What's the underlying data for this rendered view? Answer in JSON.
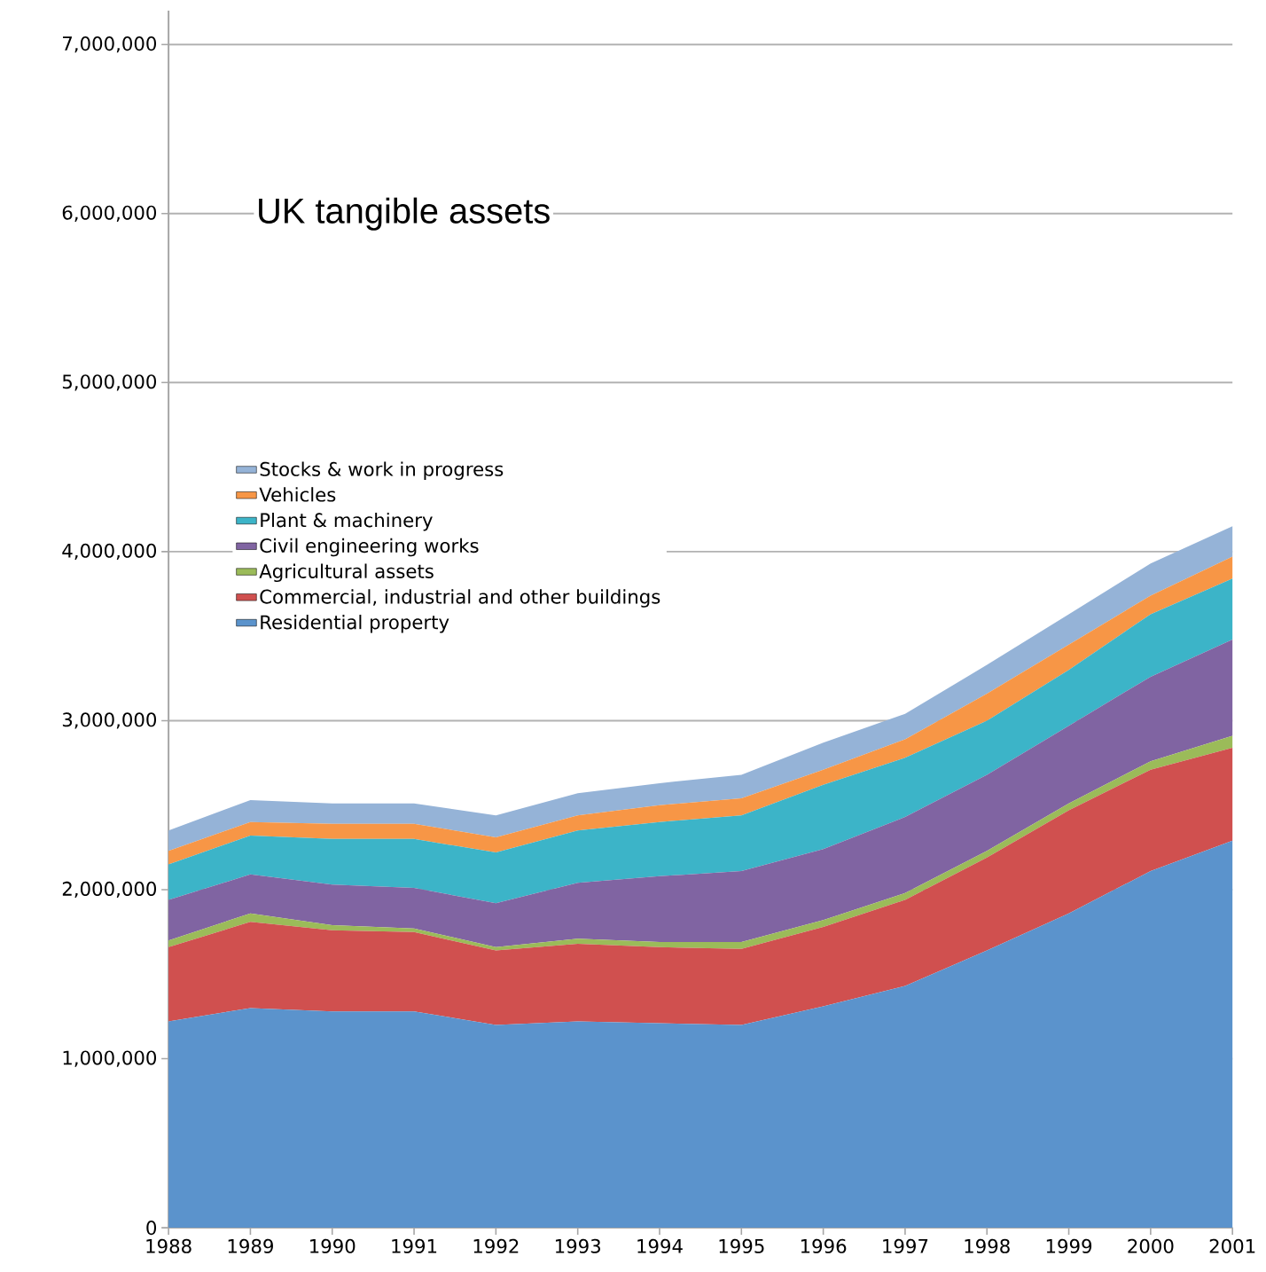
{
  "chart_data": {
    "type": "area",
    "stacked": true,
    "title": "UK tangible assets",
    "categories": [
      "1988",
      "1989",
      "1990",
      "1991",
      "1992",
      "1993",
      "1994",
      "1995",
      "1996",
      "1997",
      "1998",
      "1999",
      "2000",
      "2001"
    ],
    "series": [
      {
        "name": "Residential property",
        "color": "#5b93cc",
        "values": [
          1220000,
          1300000,
          1280000,
          1280000,
          1200000,
          1220000,
          1210000,
          1200000,
          1310000,
          1430000,
          1640000,
          1860000,
          2110000,
          2290000
        ]
      },
      {
        "name": "Commercial, industrial and other buildings",
        "color": "#d0504f",
        "values": [
          440000,
          510000,
          480000,
          470000,
          440000,
          460000,
          450000,
          450000,
          470000,
          510000,
          550000,
          610000,
          600000,
          550000
        ]
      },
      {
        "name": "Agricultural assets",
        "color": "#9bbb59",
        "values": [
          40000,
          50000,
          30000,
          20000,
          20000,
          30000,
          30000,
          40000,
          40000,
          40000,
          40000,
          40000,
          50000,
          70000
        ]
      },
      {
        "name": "Civil engineering works",
        "color": "#8064a2",
        "values": [
          240000,
          230000,
          240000,
          240000,
          260000,
          330000,
          390000,
          420000,
          420000,
          450000,
          450000,
          460000,
          500000,
          570000
        ]
      },
      {
        "name": "Plant & machinery",
        "color": "#3cb4c8",
        "values": [
          210000,
          230000,
          270000,
          290000,
          300000,
          310000,
          320000,
          330000,
          380000,
          350000,
          320000,
          330000,
          370000,
          360000
        ]
      },
      {
        "name": "Vehicles",
        "color": "#f79646",
        "values": [
          80000,
          80000,
          90000,
          90000,
          90000,
          90000,
          100000,
          100000,
          90000,
          110000,
          160000,
          150000,
          110000,
          130000
        ]
      },
      {
        "name": "Stocks & work in progress",
        "color": "#95b3d7",
        "values": [
          120000,
          130000,
          120000,
          120000,
          130000,
          130000,
          130000,
          140000,
          160000,
          150000,
          170000,
          180000,
          190000,
          180000
        ]
      }
    ],
    "ylim": [
      0,
      7200000
    ],
    "yticks": [
      {
        "value": 0,
        "label": "0"
      },
      {
        "value": 1000000,
        "label": "1,000,000"
      },
      {
        "value": 2000000,
        "label": "2,000,000"
      },
      {
        "value": 3000000,
        "label": "3,000,000"
      },
      {
        "value": 4000000,
        "label": "4,000,000"
      },
      {
        "value": 5000000,
        "label": "5,000,000"
      },
      {
        "value": 6000000,
        "label": "6,000,000"
      },
      {
        "value": 7000000,
        "label": "7,000,000"
      }
    ],
    "grid": "y",
    "legend": "left"
  }
}
